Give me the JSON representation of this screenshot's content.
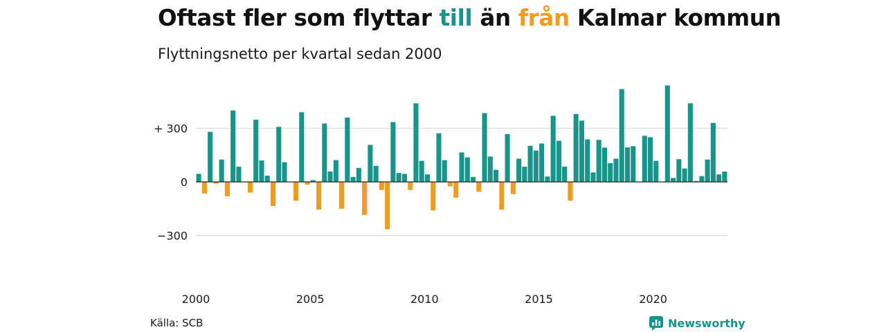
{
  "title": {
    "part1": "Oftast fler som flyttar ",
    "highlight_to": "till",
    "part2": " än ",
    "highlight_from": "från",
    "part3": " Kalmar kommun"
  },
  "subtitle": "Flyttningsnetto per kvartal sedan 2000",
  "source": "Källa: SCB",
  "logo": {
    "name": "Newsworthy",
    "icon": "newsworthy-logo-icon"
  },
  "colors": {
    "positive": "#17958a",
    "negative": "#f09b22",
    "grid": "#dddddd",
    "zero": "#222222"
  },
  "chart_data": {
    "type": "bar",
    "title": "Flyttningsnetto per kvartal sedan 2000",
    "xlabel": "",
    "ylabel": "",
    "ylim": [
      -470,
      560
    ],
    "y_ticks": [
      {
        "value": 300,
        "label": "+ 300"
      },
      {
        "value": 0,
        "label": "0"
      },
      {
        "value": -300,
        "label": "−300"
      }
    ],
    "x_ticks": [
      "2000",
      "2005",
      "2010",
      "2015",
      "2020"
    ],
    "grid": true,
    "legend": "none",
    "start": "2000-Q1",
    "values": [
      45,
      -65,
      280,
      -10,
      125,
      -80,
      400,
      85,
      0,
      -60,
      348,
      120,
      35,
      -135,
      308,
      110,
      0,
      -105,
      390,
      -15,
      10,
      -155,
      327,
      58,
      122,
      -150,
      360,
      28,
      78,
      -185,
      207,
      90,
      -45,
      -265,
      335,
      50,
      45,
      -45,
      440,
      118,
      42,
      -160,
      272,
      122,
      -25,
      -88,
      165,
      137,
      28,
      -55,
      385,
      142,
      68,
      -155,
      268,
      -68,
      130,
      85,
      202,
      175,
      215,
      30,
      370,
      230,
      85,
      -105,
      380,
      343,
      238,
      53,
      235,
      192,
      105,
      130,
      520,
      193,
      200,
      0,
      258,
      250,
      118,
      0,
      540,
      22,
      127,
      75,
      440,
      5,
      32,
      125,
      330,
      42,
      58
    ]
  }
}
